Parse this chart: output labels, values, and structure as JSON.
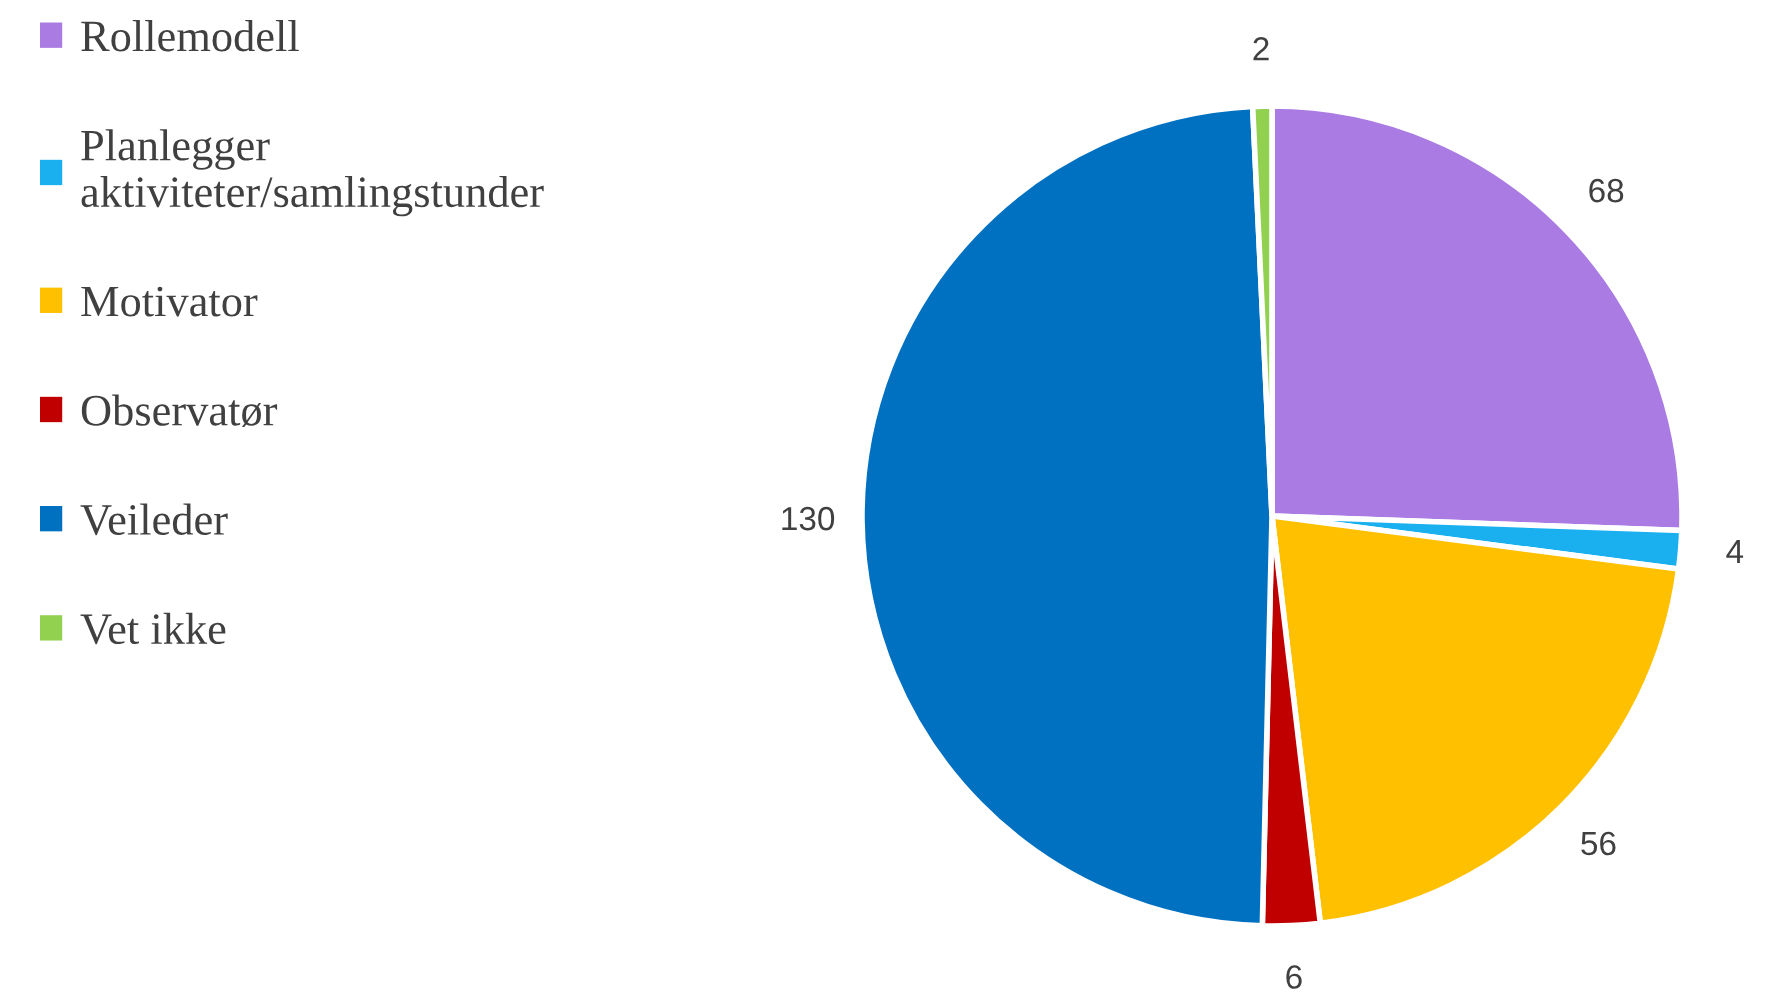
{
  "chart_data": {
    "type": "pie",
    "categories": [
      "Rollemodell",
      "Planlegger\naktiviteter/samlingstunder",
      "Motivator",
      "Observatør",
      "Veileder",
      "Vet ikke"
    ],
    "values": [
      68,
      4,
      56,
      6,
      130,
      2
    ],
    "colors": [
      "#a97be3",
      "#1ab0f0",
      "#ffc000",
      "#c00000",
      "#0070c0",
      "#92d050"
    ],
    "data_labels": true,
    "legend": "left"
  }
}
